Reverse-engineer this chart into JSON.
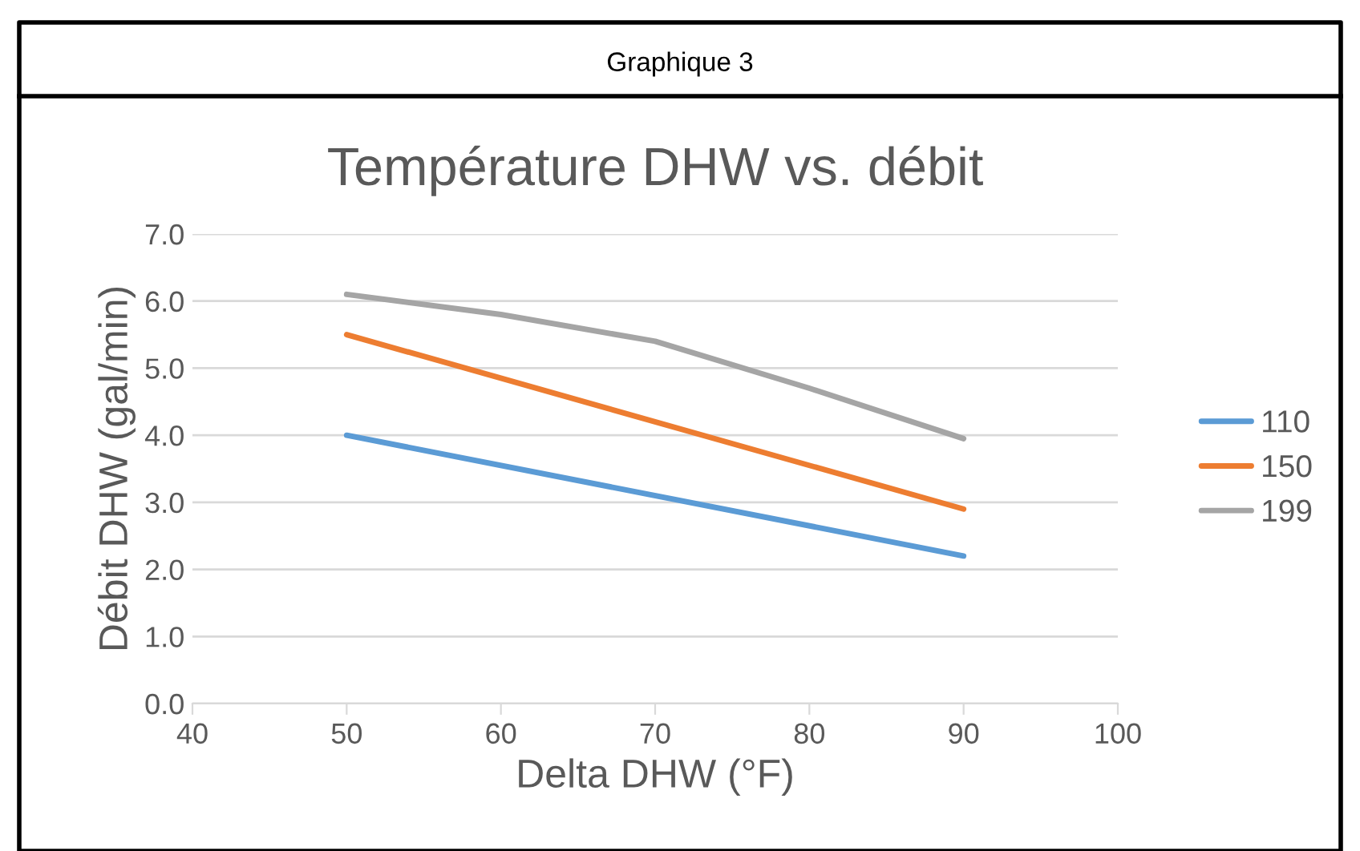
{
  "chart_data": {
    "type": "line",
    "title": "Température DHW vs. débit",
    "xlabel": "Delta DHW (°F)",
    "ylabel": "Débit DHW (gal/min)",
    "annotations": [
      "Graphique 3"
    ],
    "series": [
      {
        "name": "110",
        "color": "#5b9bd5",
        "x": [
          50,
          90
        ],
        "values": [
          4.0,
          2.2
        ]
      },
      {
        "name": "150",
        "color": "#ed7d31",
        "x": [
          50,
          90
        ],
        "values": [
          5.5,
          2.9
        ]
      },
      {
        "name": "199",
        "color": "#a5a5a5",
        "x": [
          50,
          60,
          70,
          80,
          90
        ],
        "values": [
          6.1,
          5.8,
          5.4,
          4.7,
          3.95
        ]
      }
    ],
    "xlim": [
      40,
      100
    ],
    "xticks": [
      40,
      50,
      60,
      70,
      80,
      90,
      100
    ],
    "ylim": [
      0,
      7
    ],
    "yticks": [
      {
        "value": 0,
        "label": "0.0"
      },
      {
        "value": 1,
        "label": "1.0"
      },
      {
        "value": 2,
        "label": "2.0"
      },
      {
        "value": 3,
        "label": "3.0"
      },
      {
        "value": 4,
        "label": "4.0"
      },
      {
        "value": 5,
        "label": "5.0"
      },
      {
        "value": 6,
        "label": "6.0"
      },
      {
        "value": 7,
        "label": "7.0"
      }
    ],
    "grid": "y",
    "legend": "right",
    "marker": "none",
    "line_style": "solid"
  }
}
